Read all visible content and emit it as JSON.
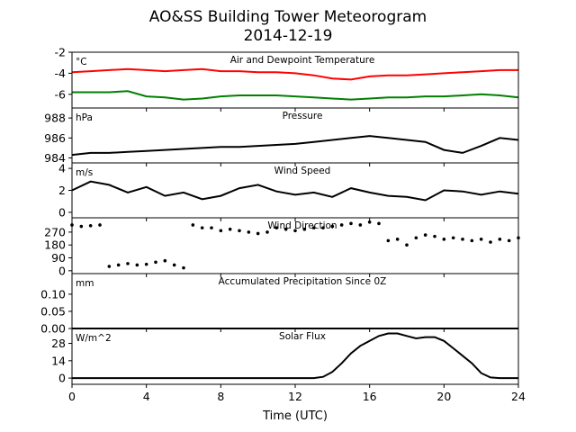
{
  "figure": {
    "title_line1": "AO&SS Building Tower Meteorogram",
    "title_line2": "2014-12-19",
    "xlabel": "Time (UTC)"
  },
  "chart_data": [
    {
      "type": "line",
      "title": "Air and Dewpoint Temperature",
      "unit": "°C",
      "ylim": [
        -7.3,
        -2
      ],
      "yticks": [
        -2,
        -4,
        -6
      ],
      "xlim": [
        0,
        24
      ],
      "xticks": [
        0,
        4,
        8,
        12,
        16,
        20,
        24
      ],
      "colors": [
        "#ff0000",
        "#008000"
      ],
      "x": [
        0,
        1,
        2,
        3,
        4,
        5,
        6,
        7,
        8,
        9,
        10,
        11,
        12,
        13,
        14,
        15,
        16,
        17,
        18,
        19,
        20,
        21,
        22,
        23,
        24
      ],
      "series": [
        {
          "values": [
            -3.9,
            -3.8,
            -3.7,
            -3.6,
            -3.7,
            -3.8,
            -3.7,
            -3.6,
            -3.8,
            -3.8,
            -3.9,
            -3.9,
            -4.0,
            -4.2,
            -4.5,
            -4.6,
            -4.3,
            -4.2,
            -4.2,
            -4.1,
            -4.0,
            -3.9,
            -3.8,
            -3.7,
            -3.7
          ]
        },
        {
          "values": [
            -5.8,
            -5.8,
            -5.8,
            -5.7,
            -6.2,
            -6.3,
            -6.5,
            -6.4,
            -6.2,
            -6.1,
            -6.1,
            -6.1,
            -6.2,
            -6.3,
            -6.4,
            -6.5,
            -6.4,
            -6.3,
            -6.3,
            -6.2,
            -6.2,
            -6.1,
            -6.0,
            -6.1,
            -6.3
          ]
        }
      ]
    },
    {
      "type": "line",
      "title": "Pressure",
      "unit": "hPa",
      "ylim": [
        983.5,
        989
      ],
      "yticks": [
        984,
        986,
        988
      ],
      "xlim": [
        0,
        24
      ],
      "colors": [
        "#000000"
      ],
      "x": [
        0,
        1,
        2,
        3,
        4,
        5,
        6,
        7,
        8,
        9,
        10,
        11,
        12,
        13,
        14,
        15,
        16,
        17,
        18,
        19,
        20,
        21,
        22,
        23,
        24
      ],
      "series": [
        {
          "values": [
            984.3,
            984.5,
            984.5,
            984.6,
            984.7,
            984.8,
            984.9,
            985.0,
            985.1,
            985.1,
            985.2,
            985.3,
            985.4,
            985.6,
            985.8,
            986.0,
            986.2,
            986.0,
            985.8,
            985.6,
            984.8,
            984.5,
            985.2,
            986.0,
            985.8
          ]
        }
      ]
    },
    {
      "type": "line",
      "title": "Wind Speed",
      "unit": "m/s",
      "ylim": [
        -0.5,
        4.5
      ],
      "yticks": [
        0,
        2,
        4
      ],
      "xlim": [
        0,
        24
      ],
      "colors": [
        "#000000"
      ],
      "x": [
        0,
        1,
        2,
        3,
        4,
        5,
        6,
        7,
        8,
        9,
        10,
        11,
        12,
        13,
        14,
        15,
        16,
        17,
        18,
        19,
        20,
        21,
        22,
        23,
        24
      ],
      "series": [
        {
          "values": [
            2.0,
            2.8,
            2.5,
            1.8,
            2.3,
            1.5,
            1.8,
            1.2,
            1.5,
            2.2,
            2.5,
            1.9,
            1.6,
            1.8,
            1.4,
            2.2,
            1.8,
            1.5,
            1.4,
            1.1,
            2.0,
            1.9,
            1.6,
            1.9,
            1.7
          ]
        }
      ]
    },
    {
      "type": "scatter",
      "title": "Wind Direction",
      "ylim": [
        -20,
        370
      ],
      "yticks": [
        0,
        90,
        180,
        270
      ],
      "xlim": [
        0,
        24
      ],
      "colors": [
        "#000000"
      ],
      "series": [
        {
          "x": [
            0,
            0.5,
            1,
            1.5,
            2,
            2.5,
            3,
            3.5,
            4,
            4.5,
            5,
            5.5,
            6,
            6.5,
            7,
            7.5,
            8,
            8.5,
            9,
            9.5,
            10,
            10.5,
            11,
            11.5,
            12,
            12.5,
            13,
            13.5,
            14,
            14.5,
            15,
            15.5,
            16,
            16.5,
            17,
            17.5,
            18,
            18.5,
            19,
            19.5,
            20,
            20.5,
            21,
            21.5,
            22,
            22.5,
            23,
            23.5,
            24
          ],
          "values": [
            320,
            310,
            315,
            320,
            30,
            40,
            50,
            40,
            45,
            60,
            70,
            40,
            20,
            320,
            300,
            300,
            280,
            290,
            280,
            270,
            260,
            270,
            300,
            290,
            280,
            290,
            300,
            300,
            310,
            320,
            330,
            320,
            340,
            330,
            210,
            220,
            180,
            230,
            250,
            240,
            220,
            230,
            220,
            210,
            220,
            200,
            220,
            210,
            230
          ]
        }
      ]
    },
    {
      "type": "line",
      "title": "Accumulated Precipitation Since 0Z",
      "unit": "mm",
      "ylim": [
        0,
        0.16
      ],
      "yticks": [
        0.0,
        0.05,
        0.1
      ],
      "ytick_labels": [
        "0.00",
        "0.05",
        "0.10"
      ],
      "xlim": [
        0,
        24
      ],
      "colors": [
        "#000000"
      ],
      "x": [
        0,
        24
      ],
      "series": [
        {
          "values": [
            0,
            0
          ]
        }
      ]
    },
    {
      "type": "line",
      "title": "Solar Flux",
      "unit": "W/m^2",
      "ylim": [
        -5,
        40
      ],
      "yticks": [
        0,
        14,
        28
      ],
      "xlim": [
        0,
        24
      ],
      "colors": [
        "#000000"
      ],
      "x": [
        0,
        13,
        13.5,
        14,
        14.5,
        15,
        15.5,
        16,
        16.5,
        17,
        17.5,
        18,
        18.5,
        19,
        19.5,
        20,
        20.5,
        21,
        21.5,
        22,
        22.5,
        23,
        24
      ],
      "series": [
        {
          "values": [
            0,
            0,
            1,
            5,
            12,
            20,
            26,
            30,
            34,
            36,
            36,
            34,
            32,
            33,
            33,
            30,
            24,
            18,
            12,
            4,
            0.5,
            0,
            0
          ]
        }
      ]
    }
  ]
}
